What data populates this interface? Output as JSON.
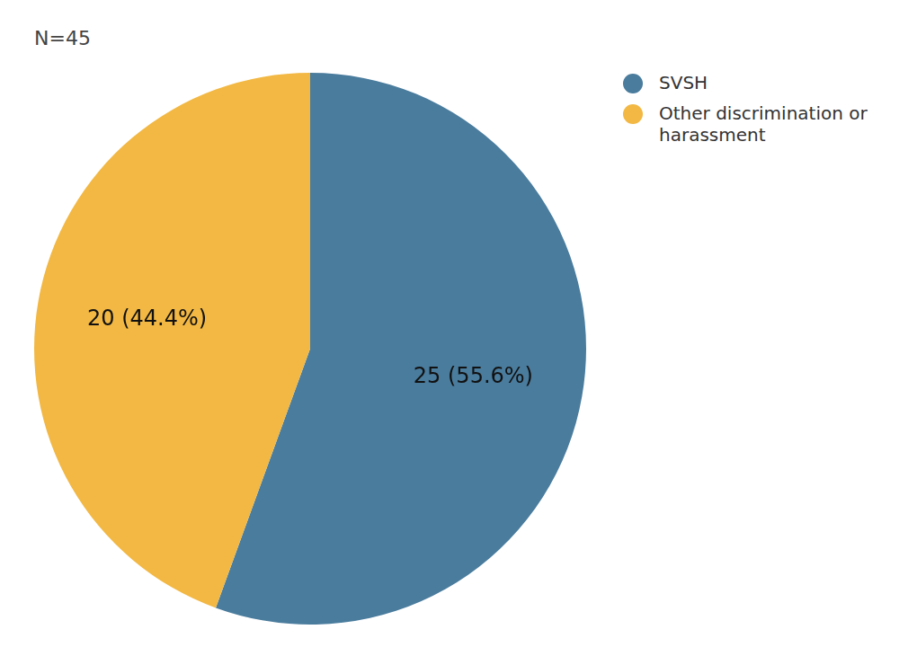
{
  "chart_data": {
    "type": "pie",
    "title": "N=45",
    "categories": [
      "SVSH",
      "Other discrimination or harassment"
    ],
    "values": [
      25,
      20
    ],
    "value_labels": [
      "25 (55.6%)",
      "20 (44.4%)"
    ],
    "colors": [
      "#4a7c9d",
      "#f2b843"
    ],
    "data_labels": true,
    "legend": "right"
  }
}
